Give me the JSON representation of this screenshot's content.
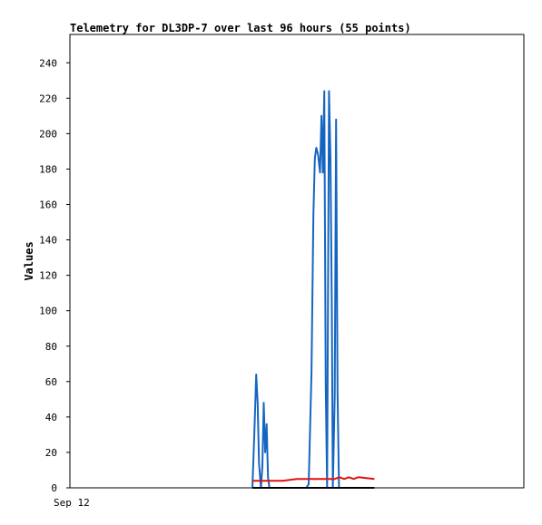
{
  "chart_data": {
    "type": "line",
    "title": "Telemetry for DL3DP-7 over last 96 hours (55 points)",
    "xlabel": "",
    "ylabel": "Values",
    "x_tick_labels": [
      "Sep 12"
    ],
    "y_ticks": [
      0,
      20,
      40,
      60,
      80,
      100,
      120,
      140,
      160,
      180,
      200,
      220,
      240
    ],
    "xlim": [
      0,
      96
    ],
    "ylim": [
      0,
      256
    ],
    "grid": false,
    "legend": "none",
    "series": [
      {
        "color": "#1565c0",
        "x": [
          38.6,
          39.0,
          39.4,
          39.7,
          40.0,
          40.4,
          40.7,
          41.0,
          41.3,
          41.6,
          41.9,
          42.2,
          50.0,
          50.5,
          51.1,
          51.5,
          51.8,
          52.1,
          52.5,
          52.9,
          53.2,
          53.5,
          53.8,
          54.1,
          54.4,
          54.8,
          55.1,
          55.4,
          55.6,
          56.0,
          56.3,
          56.6,
          56.9,
          57.3,
          57.6,
          57.9,
          58.2,
          58.5,
          58.8,
          59.1,
          59.4,
          59.8,
          60.1,
          60.4,
          60.7,
          61.0,
          61.3,
          61.6,
          61.9,
          62.2,
          62.5,
          62.8,
          63.0,
          63.2,
          63.4
        ],
        "y": [
          0,
          30,
          64,
          48,
          14,
          0,
          12,
          48,
          20,
          36,
          6,
          0,
          0,
          2,
          65,
          154,
          186,
          192,
          188,
          178,
          210,
          178,
          224,
          58,
          0,
          224,
          186,
          102,
          0,
          52,
          208,
          54,
          0,
          0,
          0,
          0,
          0,
          0,
          0,
          0,
          0,
          0,
          0,
          0,
          0,
          0,
          0,
          0,
          0,
          0,
          0,
          0,
          0,
          0,
          0
        ]
      },
      {
        "color": "#e01010",
        "x": [
          38.6,
          42.0,
          45.0,
          48.0,
          52.0,
          56.0,
          57.0,
          58.0,
          59.0,
          60.0,
          61.0,
          64.4
        ],
        "y": [
          4,
          4,
          4,
          5,
          5,
          5,
          6,
          5,
          6,
          5,
          6,
          5
        ]
      },
      {
        "color": "#000000",
        "x": [
          38.6,
          64.4
        ],
        "y": [
          0,
          0
        ]
      }
    ]
  }
}
